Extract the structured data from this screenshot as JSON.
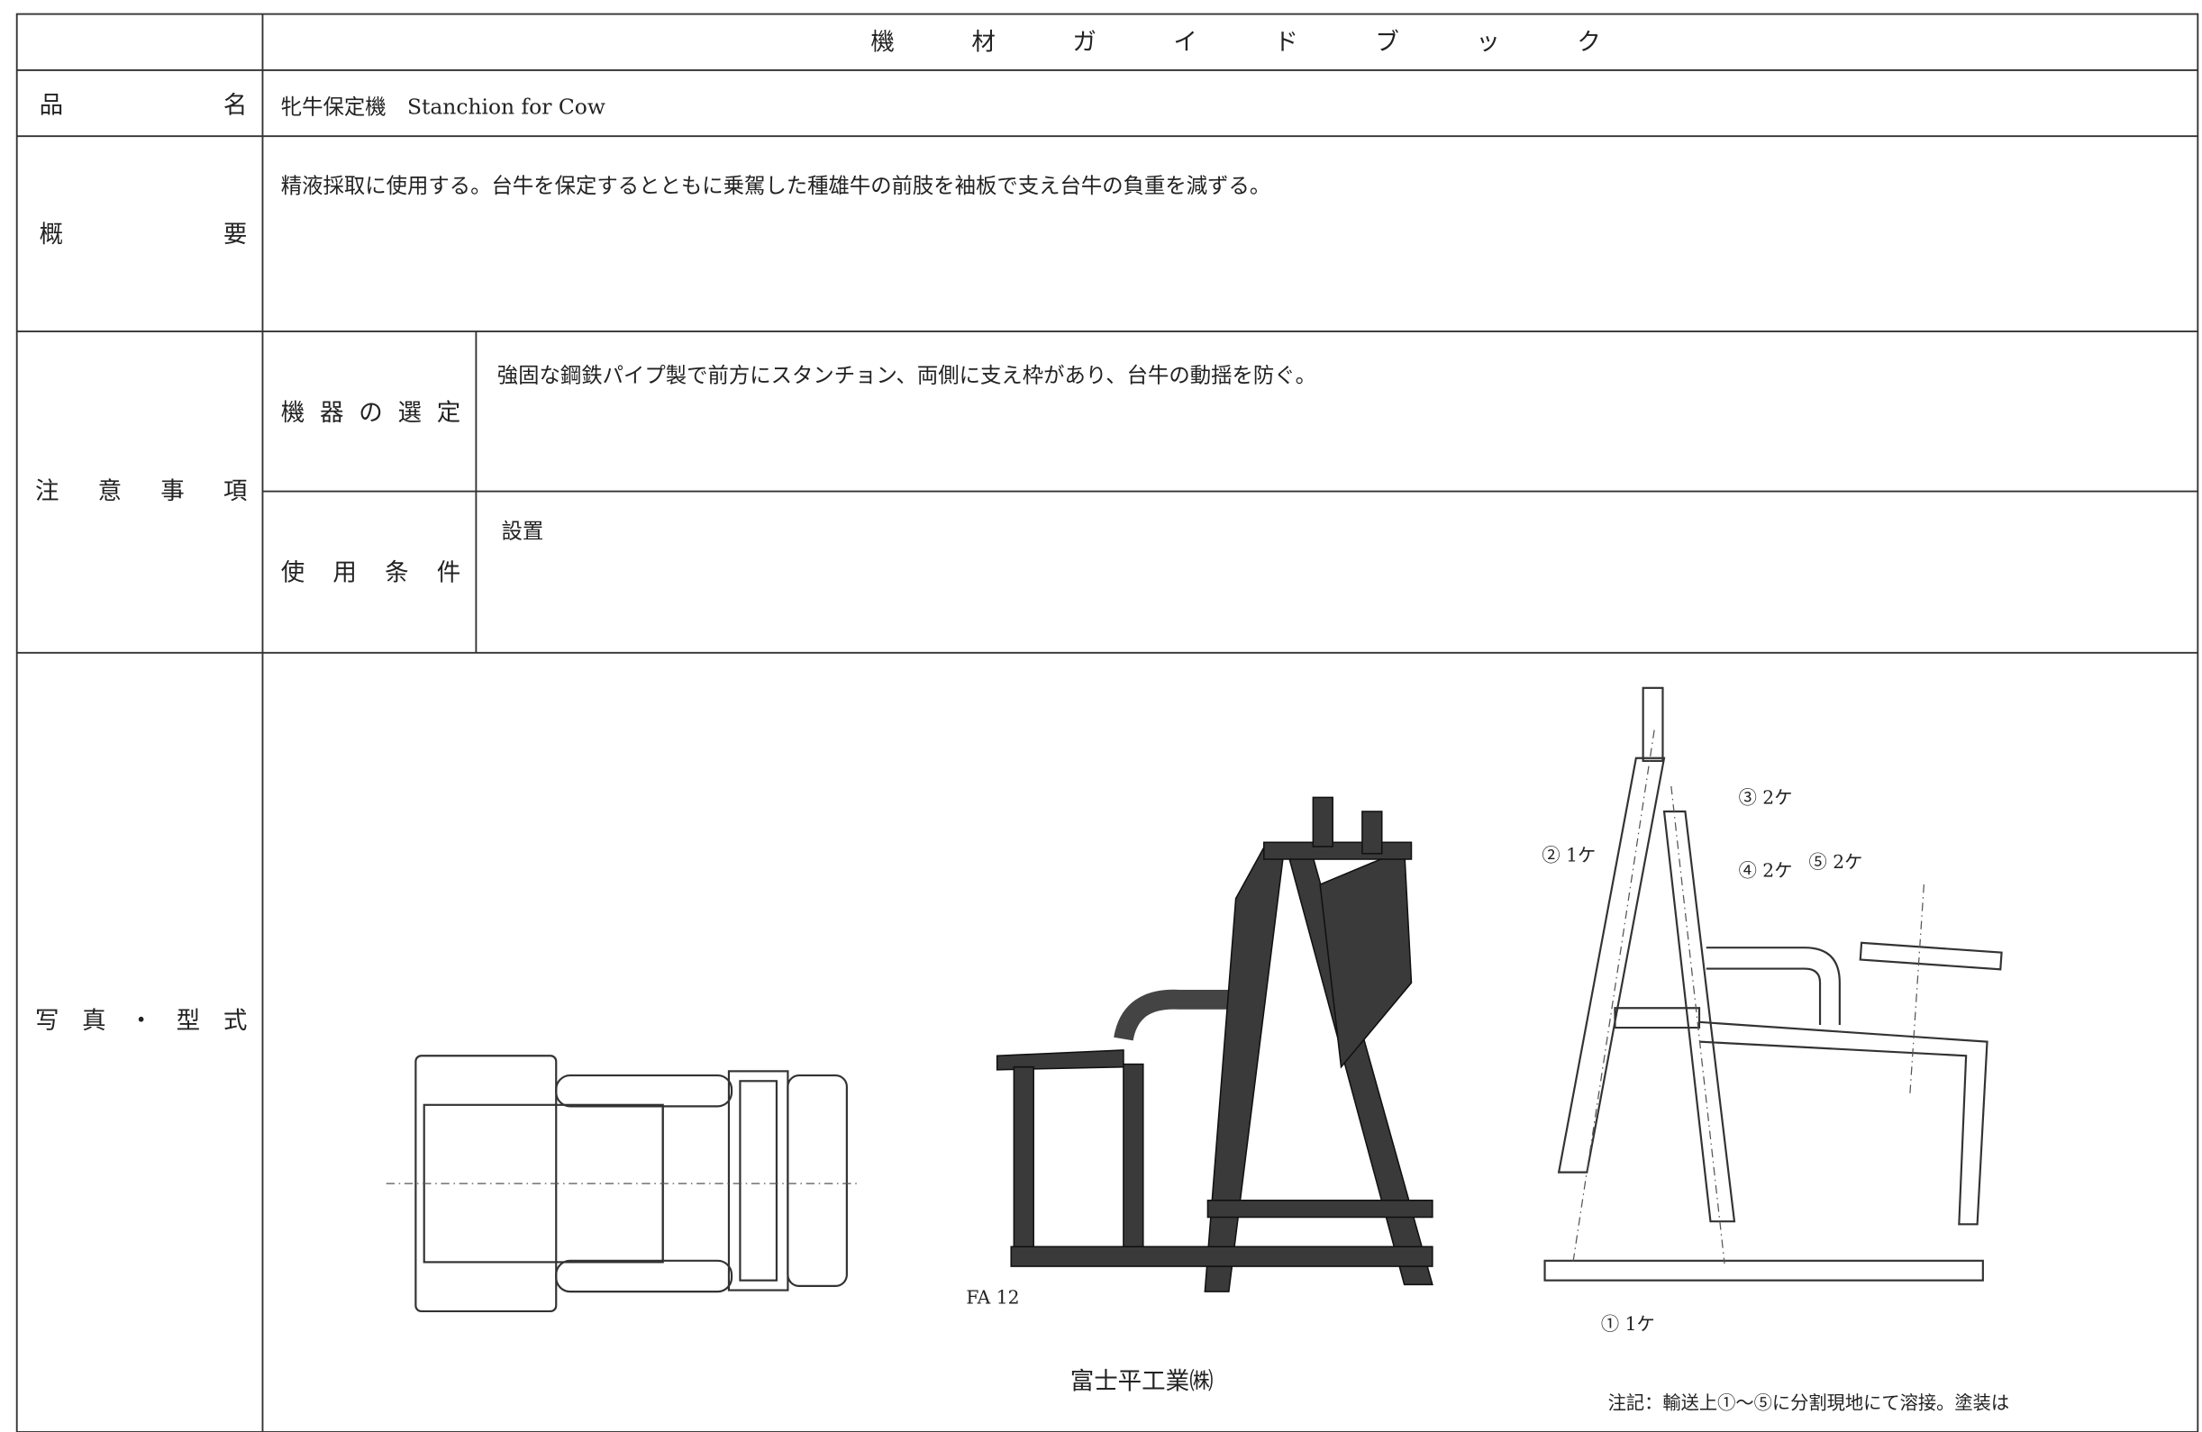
{
  "header": {
    "title": "機材ガイドブック"
  },
  "rows": {
    "name": {
      "label": "品名",
      "value": "牝牛保定機　Stanchion for Cow"
    },
    "summary": {
      "label": "概要",
      "value": "精液採取に使用する。台牛を保定するとともに乗駕した種雄牛の前肢を袖板で支え台牛の負重を減ずる。"
    },
    "notes": {
      "label": "注意事項",
      "selection": {
        "label": "機器の選定",
        "value": "強固な鋼鉄パイプ製で前方にスタンチョン、両側に支え枠があり、台牛の動揺を防ぐ。"
      },
      "conditions": {
        "label": "使用条件",
        "value": "設置"
      }
    },
    "photo": {
      "label": "写真・型式",
      "photo_caption": "FA 12",
      "maker": "富士平工業㈱",
      "parts": [
        "① 1ケ",
        "② 1ケ",
        "③ 2ケ",
        "④ 2ケ",
        "⑤ 2ケ"
      ],
      "note": "注記：輸送上①～⑤に分割現地にて溶接。塗装は"
    }
  }
}
